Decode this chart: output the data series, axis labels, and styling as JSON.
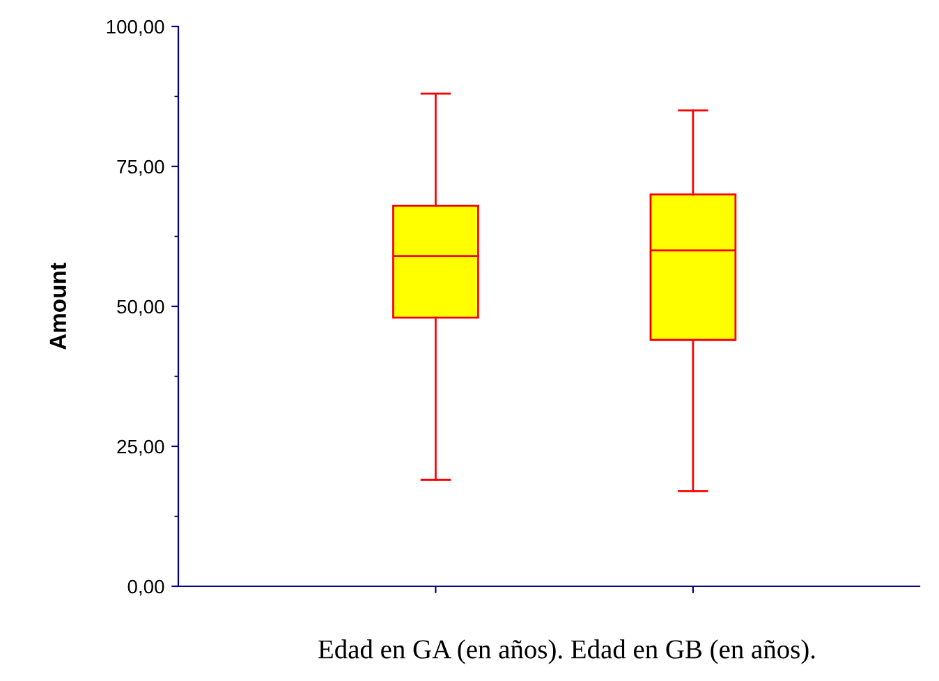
{
  "chart_data": {
    "type": "box",
    "ylabel": "Amount",
    "categories": [
      null,
      null
    ],
    "series": [
      {
        "color": "#ffff00",
        "boxes": [
          {
            "low": 19,
            "q1": 48,
            "median": 59,
            "q3": 68,
            "high": 88
          },
          {
            "low": 17,
            "q1": 44,
            "median": 60,
            "q3": 70,
            "high": 85
          }
        ]
      }
    ],
    "ylim": [
      0,
      100
    ],
    "yticks": [
      {
        "value": 0,
        "label": "0,00"
      },
      {
        "value": 25,
        "label": "25,00"
      },
      {
        "value": 50,
        "label": "50,00"
      },
      {
        "value": 75,
        "label": "75,00"
      },
      {
        "value": 100,
        "label": "100,00"
      }
    ],
    "grid": false,
    "annotations": [
      "Edad en GA (en años). Edad en GB (en años)."
    ]
  }
}
